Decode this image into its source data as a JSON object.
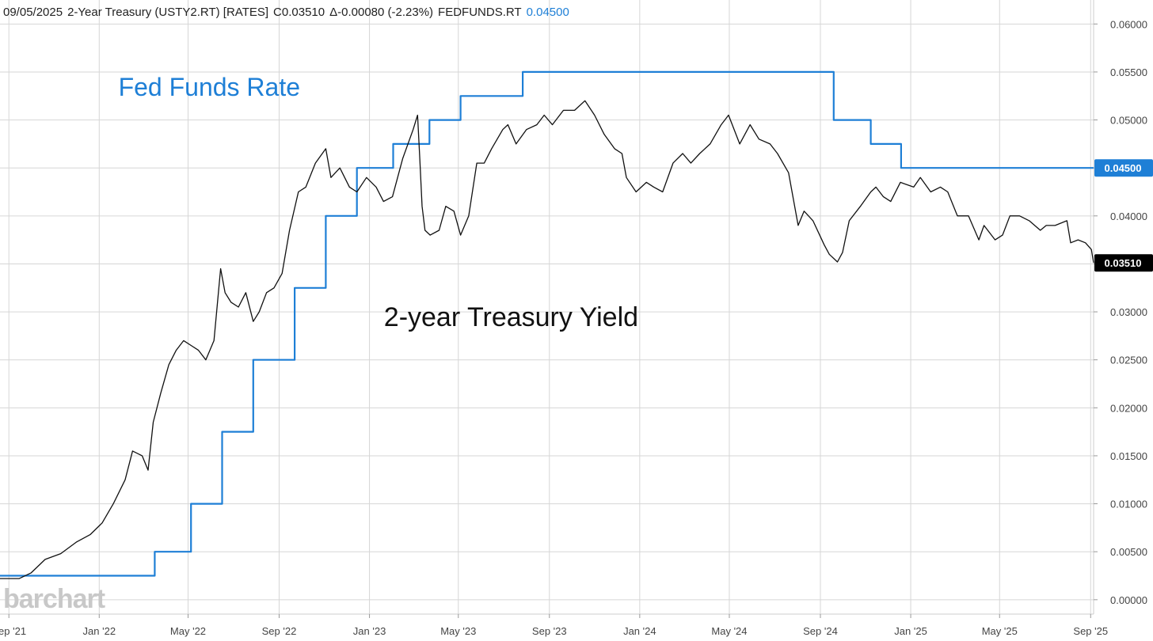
{
  "header": {
    "date": "09/05/2025",
    "symbol_text": "2-Year Treasury (USTY2.RT) [RATES]",
    "close_text": "C0.03510",
    "change_text": "Δ-0.00080 (-2.23%)",
    "compare_symbol": "FEDFUNDS.RT",
    "compare_value": "0.04500"
  },
  "brand": "barchart",
  "colors": {
    "fed_funds": "#1e7fd6",
    "treasury": "#111111",
    "grid": "#d6d6d6",
    "badge_treasury_bg": "#000000",
    "badge_fed_bg": "#1e7fd6"
  },
  "badges": {
    "fed_funds": "0.04500",
    "treasury": "0.03510"
  },
  "chart_data": {
    "type": "line",
    "title": "",
    "xlabel": "",
    "ylabel": "",
    "x_range": [
      "2021-08-20",
      "2025-09-05"
    ],
    "ylim": [
      -0.0015,
      0.0625
    ],
    "y_axis_side": "right",
    "grid": true,
    "x_ticks": [
      {
        "date": "2021-09-01",
        "label": "Sep '21"
      },
      {
        "date": "2022-01-01",
        "label": "Jan '22"
      },
      {
        "date": "2022-05-01",
        "label": "May '22"
      },
      {
        "date": "2022-09-01",
        "label": "Sep '22"
      },
      {
        "date": "2023-01-01",
        "label": "Jan '23"
      },
      {
        "date": "2023-05-01",
        "label": "May '23"
      },
      {
        "date": "2023-09-01",
        "label": "Sep '23"
      },
      {
        "date": "2024-01-01",
        "label": "Jan '24"
      },
      {
        "date": "2024-05-01",
        "label": "May '24"
      },
      {
        "date": "2024-09-01",
        "label": "Sep '24"
      },
      {
        "date": "2025-01-01",
        "label": "Jan '25"
      },
      {
        "date": "2025-05-01",
        "label": "May '25"
      },
      {
        "date": "2025-09-01",
        "label": "Sep '25"
      }
    ],
    "y_ticks": [
      {
        "value": 0.0,
        "label": "0.00000"
      },
      {
        "value": 0.005,
        "label": "0.00500"
      },
      {
        "value": 0.01,
        "label": "0.01000"
      },
      {
        "value": 0.015,
        "label": "0.01500"
      },
      {
        "value": 0.02,
        "label": "0.02000"
      },
      {
        "value": 0.025,
        "label": "0.02500"
      },
      {
        "value": 0.03,
        "label": "0.03000"
      },
      {
        "value": 0.035,
        "label": "0.03500"
      },
      {
        "value": 0.04,
        "label": "0.04000"
      },
      {
        "value": 0.045,
        "label": "0.04500"
      },
      {
        "value": 0.05,
        "label": "0.05000"
      },
      {
        "value": 0.055,
        "label": "0.05500"
      },
      {
        "value": 0.06,
        "label": "0.06000"
      }
    ],
    "annotations": [
      {
        "text": "Fed Funds Rate",
        "series": "fed_funds",
        "date": "2022-06-15",
        "y": 0.0535
      },
      {
        "text": "2-year Treasury Yield",
        "series": "treasury",
        "date": "2023-08-01",
        "y": 0.0295
      }
    ],
    "series": [
      {
        "id": "fed_funds",
        "style": "step",
        "color": "#1e7fd6",
        "points": [
          [
            "2021-08-20",
            0.0025
          ],
          [
            "2022-03-17",
            0.005
          ],
          [
            "2022-05-05",
            0.01
          ],
          [
            "2022-06-16",
            0.0175
          ],
          [
            "2022-07-28",
            0.025
          ],
          [
            "2022-09-22",
            0.0325
          ],
          [
            "2022-11-03",
            0.04
          ],
          [
            "2022-12-15",
            0.045
          ],
          [
            "2023-02-02",
            0.0475
          ],
          [
            "2023-03-23",
            0.05
          ],
          [
            "2023-05-04",
            0.0525
          ],
          [
            "2023-07-27",
            0.055
          ],
          [
            "2024-09-19",
            0.05
          ],
          [
            "2024-11-08",
            0.0475
          ],
          [
            "2024-12-19",
            0.045
          ],
          [
            "2025-09-05",
            0.045
          ]
        ]
      },
      {
        "id": "treasury",
        "style": "line",
        "color": "#111111",
        "points": [
          [
            "2021-08-20",
            0.0022
          ],
          [
            "2021-09-15",
            0.0022
          ],
          [
            "2021-10-01",
            0.0028
          ],
          [
            "2021-10-20",
            0.0042
          ],
          [
            "2021-11-10",
            0.0048
          ],
          [
            "2021-12-01",
            0.006
          ],
          [
            "2021-12-20",
            0.0068
          ],
          [
            "2022-01-05",
            0.008
          ],
          [
            "2022-01-20",
            0.01
          ],
          [
            "2022-02-05",
            0.0125
          ],
          [
            "2022-02-15",
            0.0155
          ],
          [
            "2022-02-28",
            0.015
          ],
          [
            "2022-03-08",
            0.0135
          ],
          [
            "2022-03-15",
            0.0185
          ],
          [
            "2022-03-25",
            0.0215
          ],
          [
            "2022-04-05",
            0.0245
          ],
          [
            "2022-04-15",
            0.026
          ],
          [
            "2022-04-25",
            0.027
          ],
          [
            "2022-05-05",
            0.0265
          ],
          [
            "2022-05-15",
            0.026
          ],
          [
            "2022-05-25",
            0.025
          ],
          [
            "2022-06-05",
            0.027
          ],
          [
            "2022-06-14",
            0.0345
          ],
          [
            "2022-06-20",
            0.032
          ],
          [
            "2022-06-28",
            0.031
          ],
          [
            "2022-07-08",
            0.0305
          ],
          [
            "2022-07-18",
            0.032
          ],
          [
            "2022-07-28",
            0.029
          ],
          [
            "2022-08-05",
            0.03
          ],
          [
            "2022-08-15",
            0.032
          ],
          [
            "2022-08-25",
            0.0325
          ],
          [
            "2022-09-05",
            0.034
          ],
          [
            "2022-09-15",
            0.0385
          ],
          [
            "2022-09-27",
            0.0425
          ],
          [
            "2022-10-07",
            0.043
          ],
          [
            "2022-10-20",
            0.0455
          ],
          [
            "2022-11-03",
            0.047
          ],
          [
            "2022-11-10",
            0.044
          ],
          [
            "2022-11-22",
            0.045
          ],
          [
            "2022-12-05",
            0.043
          ],
          [
            "2022-12-15",
            0.0425
          ],
          [
            "2022-12-28",
            0.044
          ],
          [
            "2023-01-10",
            0.043
          ],
          [
            "2023-01-20",
            0.0415
          ],
          [
            "2023-02-01",
            0.042
          ],
          [
            "2023-02-15",
            0.046
          ],
          [
            "2023-03-01",
            0.049
          ],
          [
            "2023-03-07",
            0.0505
          ],
          [
            "2023-03-10",
            0.046
          ],
          [
            "2023-03-13",
            0.041
          ],
          [
            "2023-03-17",
            0.0385
          ],
          [
            "2023-03-24",
            0.038
          ],
          [
            "2023-04-05",
            0.0385
          ],
          [
            "2023-04-14",
            0.041
          ],
          [
            "2023-04-25",
            0.0405
          ],
          [
            "2023-05-04",
            0.038
          ],
          [
            "2023-05-15",
            0.04
          ],
          [
            "2023-05-26",
            0.0455
          ],
          [
            "2023-06-05",
            0.0455
          ],
          [
            "2023-06-15",
            0.047
          ],
          [
            "2023-06-30",
            0.049
          ],
          [
            "2023-07-07",
            0.0495
          ],
          [
            "2023-07-18",
            0.0475
          ],
          [
            "2023-08-01",
            0.049
          ],
          [
            "2023-08-15",
            0.0495
          ],
          [
            "2023-08-25",
            0.0505
          ],
          [
            "2023-09-05",
            0.0495
          ],
          [
            "2023-09-20",
            0.051
          ],
          [
            "2023-10-05",
            0.051
          ],
          [
            "2023-10-19",
            0.052
          ],
          [
            "2023-11-01",
            0.0505
          ],
          [
            "2023-11-14",
            0.0485
          ],
          [
            "2023-11-28",
            0.047
          ],
          [
            "2023-12-08",
            0.0465
          ],
          [
            "2023-12-14",
            0.044
          ],
          [
            "2023-12-27",
            0.0425
          ],
          [
            "2024-01-10",
            0.0435
          ],
          [
            "2024-01-20",
            0.043
          ],
          [
            "2024-02-01",
            0.0425
          ],
          [
            "2024-02-15",
            0.0455
          ],
          [
            "2024-02-28",
            0.0465
          ],
          [
            "2024-03-10",
            0.0455
          ],
          [
            "2024-03-22",
            0.0465
          ],
          [
            "2024-04-05",
            0.0475
          ],
          [
            "2024-04-20",
            0.0495
          ],
          [
            "2024-04-30",
            0.0505
          ],
          [
            "2024-05-15",
            0.0475
          ],
          [
            "2024-05-29",
            0.0495
          ],
          [
            "2024-06-10",
            0.048
          ],
          [
            "2024-06-25",
            0.0475
          ],
          [
            "2024-07-05",
            0.0465
          ],
          [
            "2024-07-20",
            0.0445
          ],
          [
            "2024-08-02",
            0.039
          ],
          [
            "2024-08-10",
            0.0405
          ],
          [
            "2024-08-22",
            0.0395
          ],
          [
            "2024-09-06",
            0.037
          ],
          [
            "2024-09-13",
            0.036
          ],
          [
            "2024-09-24",
            0.0352
          ],
          [
            "2024-10-01",
            0.0362
          ],
          [
            "2024-10-10",
            0.0395
          ],
          [
            "2024-10-25",
            0.041
          ],
          [
            "2024-11-08",
            0.0425
          ],
          [
            "2024-11-15",
            0.043
          ],
          [
            "2024-11-25",
            0.042
          ],
          [
            "2024-12-05",
            0.0415
          ],
          [
            "2024-12-18",
            0.0435
          ],
          [
            "2025-01-05",
            0.043
          ],
          [
            "2025-01-14",
            0.044
          ],
          [
            "2025-01-28",
            0.0425
          ],
          [
            "2025-02-10",
            0.043
          ],
          [
            "2025-02-20",
            0.0425
          ],
          [
            "2025-03-05",
            0.04
          ],
          [
            "2025-03-20",
            0.04
          ],
          [
            "2025-04-03",
            0.0375
          ],
          [
            "2025-04-10",
            0.039
          ],
          [
            "2025-04-25",
            0.0375
          ],
          [
            "2025-05-05",
            0.038
          ],
          [
            "2025-05-15",
            0.04
          ],
          [
            "2025-05-28",
            0.04
          ],
          [
            "2025-06-10",
            0.0395
          ],
          [
            "2025-06-25",
            0.0385
          ],
          [
            "2025-07-03",
            0.039
          ],
          [
            "2025-07-15",
            0.039
          ],
          [
            "2025-07-31",
            0.0395
          ],
          [
            "2025-08-05",
            0.0372
          ],
          [
            "2025-08-15",
            0.0375
          ],
          [
            "2025-08-25",
            0.0372
          ],
          [
            "2025-09-02",
            0.0365
          ],
          [
            "2025-09-05",
            0.0351
          ]
        ]
      }
    ]
  }
}
